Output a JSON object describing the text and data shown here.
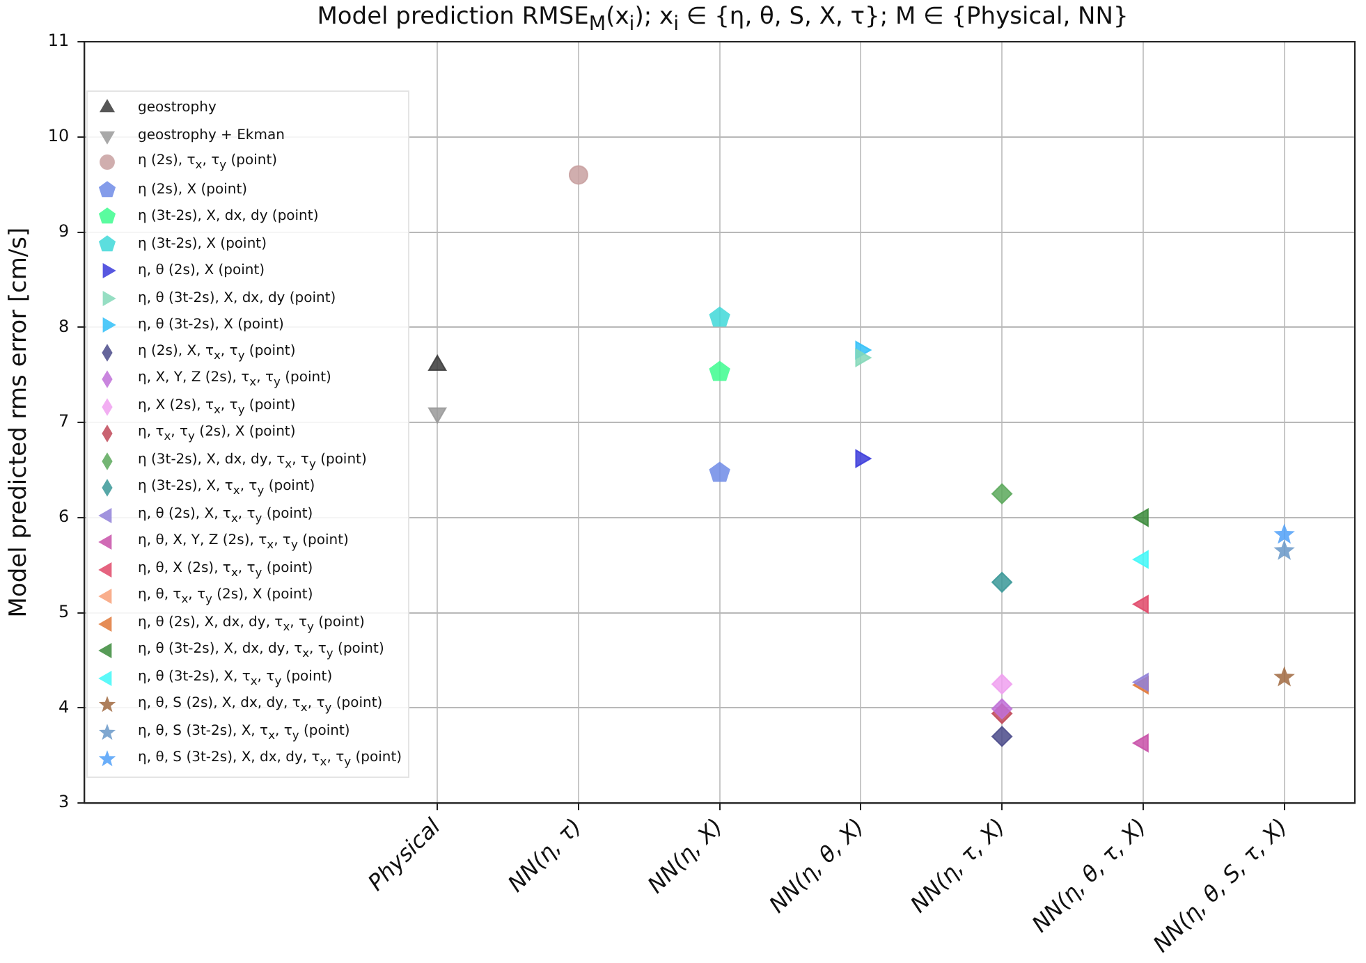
{
  "chart_data": {
    "type": "scatter",
    "title": "Model prediction RMSE$_{M}$(x$_{i}$); x$_{i}$ ∈ {η, θ, S, X, τ}; M ∈ {Physical, NN}",
    "ylabel": "Model predicted rms error [cm/s]",
    "categories": [
      null,
      null,
      "Physical",
      "NN(η, τ)",
      "NN(η, X)",
      "NN(η, θ, X)",
      "NN(η, τ, X)",
      "NN(η, θ, τ, X)",
      "NN(η, θ, S, τ, X)"
    ],
    "ylim": [
      3,
      11
    ],
    "yticks": [
      3,
      4,
      5,
      6,
      7,
      8,
      9,
      10,
      11
    ],
    "grid": true,
    "legend": "left",
    "series": [
      {
        "name": "geostrophy",
        "color": "#3a3a3a",
        "marker": "triangle-up",
        "values": [
          null,
          null,
          7.6,
          null,
          null,
          null,
          null,
          null,
          null
        ]
      },
      {
        "name": "geostrophy + Ekman",
        "color": "#999999",
        "marker": "triangle-down",
        "values": [
          null,
          null,
          7.1,
          null,
          null,
          null,
          null,
          null,
          null
        ]
      },
      {
        "name": "η (2s), τ$_{x}$, τ$_{y}$ (point)",
        "color": "#c8a0a0",
        "marker": "circle",
        "values": [
          null,
          null,
          null,
          9.6,
          null,
          null,
          null,
          null,
          null
        ]
      },
      {
        "name": "η (2s), X (point)",
        "color": "#6f8be6",
        "values": [
          null,
          null,
          null,
          null,
          6.47,
          null,
          null,
          null,
          null
        ]
      },
      {
        "name": "η (3t-2s), X, dx, dy (point)",
        "color": "#3dfc8e",
        "values": [
          null,
          null,
          null,
          null,
          7.53,
          null,
          null,
          null,
          null
        ]
      },
      {
        "name": "η (3t-2s), X (point)",
        "color": "#40d8d8",
        "values": [
          null,
          null,
          null,
          null,
          8.1,
          null,
          null,
          null,
          null
        ]
      },
      {
        "name": "η, θ (2s), X (point)",
        "color": "#3a3adb",
        "marker": "triangle-right",
        "values": [
          null,
          null,
          null,
          null,
          null,
          6.62,
          null,
          null,
          null
        ]
      },
      {
        "name": "η, θ (3t-2s), X, dx, dy (point)",
        "color": "#84d8b8",
        "marker": "triangle-right",
        "values": [
          null,
          null,
          null,
          null,
          null,
          7.68,
          null,
          null,
          null
        ]
      },
      {
        "name": "η, θ (3t-2s), X (point)",
        "color": "#30c0f8",
        "marker": "triangle-right",
        "values": [
          null,
          null,
          null,
          null,
          null,
          7.76,
          null,
          null,
          null
        ]
      },
      {
        "name": "η (2s), X, τ$_{x}$, τ$_{y}$ (point)",
        "color": "#4a4a8a",
        "marker": "diamond",
        "values": [
          null,
          null,
          null,
          null,
          null,
          null,
          3.7,
          null,
          null
        ]
      },
      {
        "name": "η, X, Y, Z (2s), τ$_{x}$, τ$_{y}$ (point)",
        "color": "#c070d8",
        "marker": "diamond",
        "values": [
          null,
          null,
          null,
          null,
          null,
          null,
          3.99,
          null,
          null
        ]
      },
      {
        "name": "η, X (2s), τ$_{x}$, τ$_{y}$ (point)",
        "color": "#f0a0f0",
        "marker": "diamond",
        "values": [
          null,
          null,
          null,
          null,
          null,
          null,
          4.25,
          null,
          null
        ]
      },
      {
        "name": "η, τ$_{x}$, τ$_{y}$ (2s), X (point)",
        "color": "#c04858",
        "marker": "diamond",
        "values": [
          null,
          null,
          null,
          null,
          null,
          null,
          3.94,
          null,
          null
        ]
      },
      {
        "name": "η (3t-2s), X, dx, dy, τ$_{x}$, τ$_{y}$ (point)",
        "color": "#5aa85a",
        "marker": "diamond",
        "values": [
          null,
          null,
          null,
          null,
          null,
          null,
          6.25,
          null,
          null
        ]
      },
      {
        "name": "η (3t-2s), X, τ$_{x}$, τ$_{y}$ (point)",
        "color": "#3a9898",
        "marker": "diamond",
        "values": [
          null,
          null,
          null,
          null,
          null,
          null,
          5.32,
          null,
          null
        ]
      },
      {
        "name": "η, θ (2s), X, τ$_{x}$, τ$_{y}$ (point)",
        "color": "#9080d8",
        "marker": "triangle-left",
        "values": [
          null,
          null,
          null,
          null,
          null,
          null,
          null,
          4.27,
          null
        ]
      },
      {
        "name": "η, θ, X, Y, Z (2s), τ$_{x}$, τ$_{y}$ (point)",
        "color": "#c850a8",
        "marker": "triangle-left",
        "values": [
          null,
          null,
          null,
          null,
          null,
          null,
          null,
          3.63,
          null
        ]
      },
      {
        "name": "η, θ, X (2s), τ$_{x}$, τ$_{y}$ (point)",
        "color": "#e04868",
        "marker": "triangle-left",
        "values": [
          null,
          null,
          null,
          null,
          null,
          null,
          null,
          5.09,
          null
        ]
      },
      {
        "name": "η, θ, τ$_{x}$, τ$_{y}$ (2s), X (point)",
        "color": "#f8a078",
        "marker": "triangle-left",
        "values": [
          null,
          null,
          null,
          null,
          null,
          null,
          null,
          null,
          null
        ]
      },
      {
        "name": "η, θ (2s), X, dx, dy, τ$_{x}$, τ$_{y}$ (point)",
        "color": "#e07838",
        "marker": "triangle-left",
        "values": [
          null,
          null,
          null,
          null,
          null,
          null,
          null,
          4.24,
          null
        ]
      },
      {
        "name": "η, θ (3t-2s), X, dx, dy, τ$_{x}$, τ$_{y}$ (point)",
        "color": "#3a8a3a",
        "marker": "triangle-left",
        "values": [
          null,
          null,
          null,
          null,
          null,
          null,
          null,
          6.0,
          null
        ]
      },
      {
        "name": "η, θ (3t-2s), X, τ$_{x}$, τ$_{y}$ (point)",
        "color": "#40f8f8",
        "marker": "triangle-left",
        "values": [
          null,
          null,
          null,
          null,
          null,
          null,
          null,
          5.56,
          null
        ]
      },
      {
        "name": "η, θ, S (2s), X, dx, dy, τ$_{x}$, τ$_{y}$ (point)",
        "color": "#a06840",
        "marker": "star",
        "values": [
          null,
          null,
          null,
          null,
          null,
          null,
          null,
          null,
          4.32
        ]
      },
      {
        "name": "η, θ, S (3t-2s), X, τ$_{x}$, τ$_{y}$ (point)",
        "color": "#6898c8",
        "marker": "star",
        "values": [
          null,
          null,
          null,
          null,
          null,
          null,
          null,
          null,
          5.65
        ]
      },
      {
        "name": "η, θ, S (3t-2s), X, dx, dy, τ$_{x}$, τ$_{y}$ (point)",
        "color": "#50a0f8",
        "marker": "star",
        "values": [
          null,
          null,
          null,
          null,
          null,
          null,
          null,
          null,
          5.82
        ]
      }
    ]
  }
}
